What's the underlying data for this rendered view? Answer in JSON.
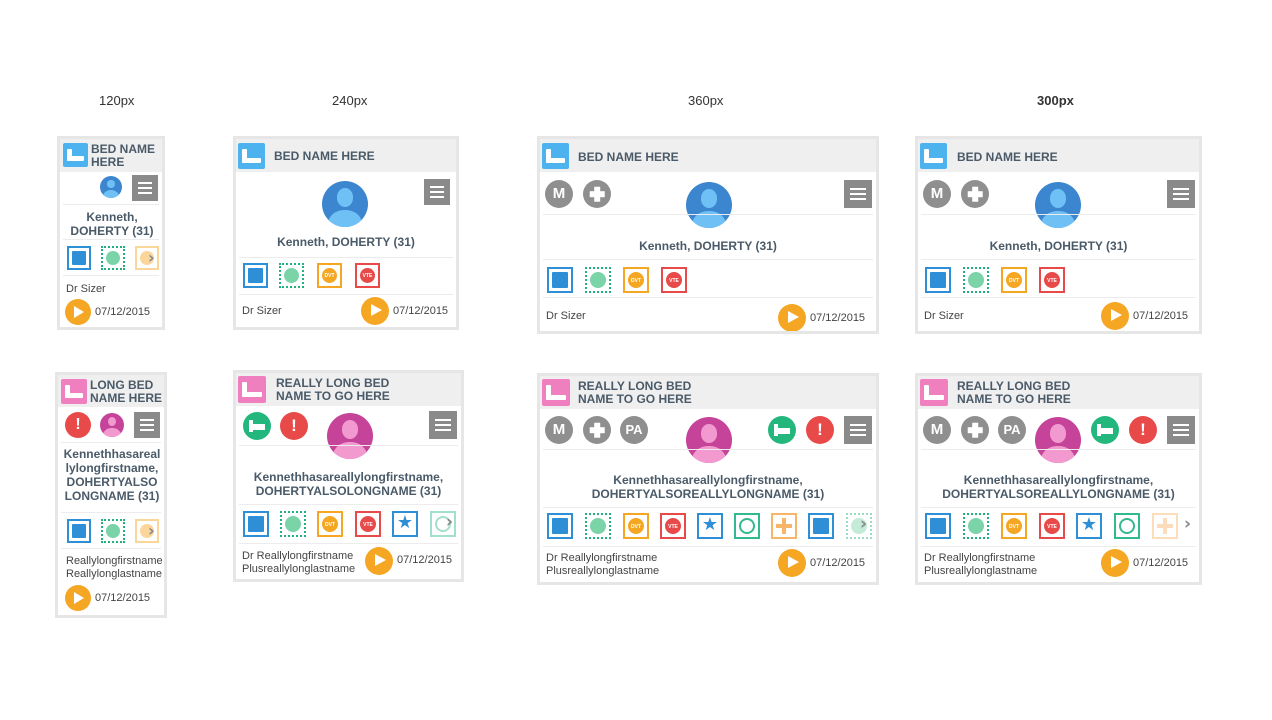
{
  "column_labels": [
    "120px",
    "240px",
    "360px",
    "300px"
  ],
  "colors": {
    "bed_blue": "#4db3ee",
    "bed_pink": "#f07fc0",
    "avatar_blue": "#3b86cf",
    "avatar_pink": "#c5449a",
    "go_orange": "#f5a623",
    "alert_red": "#e84a4a",
    "ok_green": "#23b77e",
    "neutral_grey": "#8f8f8f"
  },
  "cards": {
    "short": {
      "bed_name": "BED NAME HERE",
      "patient": "Kenneth, DOHERTY (31)",
      "doctor": "Dr Sizer",
      "date": "07/12/2015",
      "badges": [
        "M",
        "+"
      ],
      "icons": [
        "id-card-icon",
        "dotted-sun-icon",
        "dvt-icon",
        "vte-icon"
      ],
      "dvt": "DVT",
      "vte": "VTE"
    },
    "long": {
      "bed_name": "REALLY LONG BED NAME TO GO HERE",
      "bed_name_120": "LONG BED NAME HERE",
      "patient_120": "Kennethhasareal lylongfirstname, DOHERTYALSO LONGNAME (31)",
      "patient_240": "Kennethhasareallylongfirstname, DOHERTYALSOLONGNAME (31)",
      "patient_wide": "Kennethhasareallylongfirstname, DOHERTYALSOREALLYLONGNAME (31)",
      "doctor_line1": "Dr Reallylongfirstname",
      "doctor_line2": "Plusreallylonglastname",
      "doctor_120_line1": "Reallylongfirstname",
      "doctor_120_line2": "Reallylonglastname",
      "date": "07/12/2015",
      "badges": [
        "M",
        "+",
        "PA"
      ],
      "dvt": "DVT",
      "vte": "VTE"
    }
  }
}
